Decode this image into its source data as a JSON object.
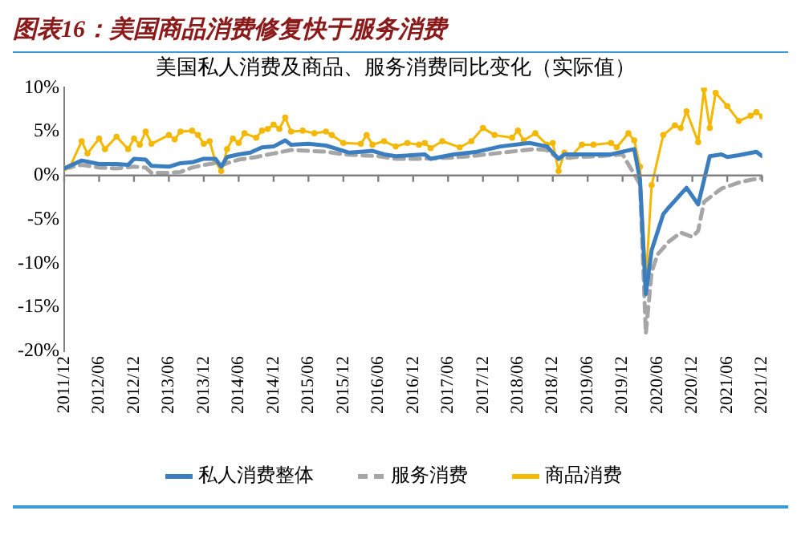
{
  "chart_data": {
    "type": "line",
    "title": "图表16：美国商品消费修复快于服务消费",
    "subtitle": "美国私人消费及商品、服务消费同比变化（实际值）",
    "legend": "bottom",
    "grid": false,
    "xlim": [
      "2011-12",
      "2021-12"
    ],
    "xticks": [
      {
        "value": "2011-12",
        "label": "2011/12"
      },
      {
        "value": "2012-06",
        "label": "2012/06"
      },
      {
        "value": "2012-12",
        "label": "2012/12"
      },
      {
        "value": "2013-06",
        "label": "2013/06"
      },
      {
        "value": "2013-12",
        "label": "2013/12"
      },
      {
        "value": "2014-06",
        "label": "2014/06"
      },
      {
        "value": "2014-12",
        "label": "2014/12"
      },
      {
        "value": "2015-06",
        "label": "2015/06"
      },
      {
        "value": "2015-12",
        "label": "2015/12"
      },
      {
        "value": "2016-06",
        "label": "2016/06"
      },
      {
        "value": "2016-12",
        "label": "2016/12"
      },
      {
        "value": "2017-06",
        "label": "2017/06"
      },
      {
        "value": "2017-12",
        "label": "2017/12"
      },
      {
        "value": "2018-06",
        "label": "2018/06"
      },
      {
        "value": "2018-12",
        "label": "2018/12"
      },
      {
        "value": "2019-06",
        "label": "2019/06"
      },
      {
        "value": "2019-12",
        "label": "2019/12"
      },
      {
        "value": "2020-06",
        "label": "2020/06"
      },
      {
        "value": "2020-12",
        "label": "2020/12"
      },
      {
        "value": "2021-06",
        "label": "2021/06"
      },
      {
        "value": "2021-12",
        "label": "2021/12"
      }
    ],
    "ylim": [
      -20,
      10
    ],
    "ref_lines": [
      {
        "axis": "y",
        "value": 0,
        "color": "#808080"
      }
    ],
    "yticks": [
      {
        "value": -20,
        "label": "-20%"
      },
      {
        "value": -15,
        "label": "-15%"
      },
      {
        "value": -10,
        "label": "-10%"
      },
      {
        "value": -5,
        "label": "-5%"
      },
      {
        "value": 0,
        "label": "0%"
      },
      {
        "value": 5,
        "label": "5%"
      },
      {
        "value": 10,
        "label": "10%"
      }
    ],
    "series": [
      {
        "name": "私人消费整体",
        "color": "#3a7ebf",
        "x": [
          "2011-12",
          "2012-03",
          "2012-06",
          "2012-09",
          "2012-11",
          "2012-12",
          "2013-02",
          "2013-03",
          "2013-06",
          "2013-08",
          "2013-10",
          "2013-12",
          "2014-02",
          "2014-03",
          "2014-04",
          "2014-06",
          "2014-08",
          "2014-10",
          "2014-12",
          "2015-02",
          "2015-03",
          "2015-06",
          "2015-09",
          "2015-11",
          "2016-01",
          "2016-03",
          "2016-05",
          "2016-07",
          "2016-09",
          "2017-02",
          "2017-03",
          "2017-07",
          "2017-11",
          "2018-03",
          "2018-08",
          "2018-11",
          "2019-01",
          "2019-02",
          "2019-05",
          "2019-10",
          "2019-12",
          "2020-02",
          "2020-03",
          "2020-04",
          "2020-05",
          "2020-07",
          "2020-08",
          "2020-11",
          "2021-01",
          "2021-03",
          "2021-05",
          "2021-06",
          "2021-08",
          "2021-11",
          "2021-12"
        ],
        "values": [
          0.8,
          1.7,
          1.3,
          1.3,
          1.2,
          1.9,
          1.8,
          1.1,
          1.0,
          1.4,
          1.5,
          1.9,
          1.9,
          1.0,
          2.1,
          2.4,
          2.6,
          3.2,
          3.3,
          4.0,
          3.5,
          3.6,
          3.4,
          3.0,
          2.6,
          2.7,
          2.8,
          2.4,
          2.2,
          2.4,
          1.9,
          2.4,
          2.7,
          3.3,
          3.7,
          3.3,
          1.9,
          2.4,
          2.4,
          2.4,
          2.7,
          3.0,
          -0.5,
          -13.5,
          -8.5,
          -4.4,
          -3.6,
          -1.4,
          -3.3,
          2.2,
          2.4,
          2.1,
          2.3,
          2.7,
          2.2
        ]
      },
      {
        "name": "服务消费",
        "color": "#a6a6a6",
        "line_style": "dashed",
        "x": [
          "2011-12",
          "2012-03",
          "2012-06",
          "2012-09",
          "2012-12",
          "2013-02",
          "2013-03",
          "2013-06",
          "2013-08",
          "2013-10",
          "2013-12",
          "2014-02",
          "2014-03",
          "2014-04",
          "2014-06",
          "2014-09",
          "2014-12",
          "2015-03",
          "2015-06",
          "2015-09",
          "2015-12",
          "2016-03",
          "2016-06",
          "2016-09",
          "2017-02",
          "2017-06",
          "2017-10",
          "2018-02",
          "2018-06",
          "2018-09",
          "2018-11",
          "2019-01",
          "2019-04",
          "2019-08",
          "2019-12",
          "2020-03",
          "2020-04",
          "2020-05",
          "2020-06",
          "2020-08",
          "2020-10",
          "2020-12",
          "2021-01",
          "2021-02",
          "2021-05",
          "2021-08",
          "2021-10",
          "2021-12"
        ],
        "values": [
          0.8,
          1.2,
          0.9,
          0.8,
          1.0,
          0.9,
          0.3,
          0.3,
          0.4,
          0.9,
          1.2,
          1.4,
          1.1,
          1.4,
          1.8,
          2.1,
          2.5,
          2.9,
          2.8,
          2.7,
          2.4,
          2.3,
          2.2,
          1.9,
          1.9,
          2.0,
          2.2,
          2.5,
          2.8,
          3.0,
          2.9,
          1.9,
          2.1,
          2.2,
          2.4,
          -1.0,
          -18.0,
          -11.0,
          -9.0,
          -7.5,
          -6.5,
          -7.0,
          -6.3,
          -3.0,
          -1.5,
          -0.8,
          -0.5,
          -0.3
        ]
      },
      {
        "name": "商品消费",
        "color": "#f5b800",
        "marker": "circle",
        "x": [
          "2011-12",
          "2012-01",
          "2012-03",
          "2012-04",
          "2012-06",
          "2012-07",
          "2012-09",
          "2012-11",
          "2012-12",
          "2013-01",
          "2013-02",
          "2013-03",
          "2013-06",
          "2013-07",
          "2013-08",
          "2013-10",
          "2013-11",
          "2013-12",
          "2014-01",
          "2014-02",
          "2014-03",
          "2014-04",
          "2014-05",
          "2014-06",
          "2014-07",
          "2014-09",
          "2014-10",
          "2014-11",
          "2014-12",
          "2015-01",
          "2015-02",
          "2015-03",
          "2015-05",
          "2015-07",
          "2015-09",
          "2015-10",
          "2015-12",
          "2016-03",
          "2016-04",
          "2016-05",
          "2016-07",
          "2016-09",
          "2016-11",
          "2017-01",
          "2017-02",
          "2017-03",
          "2017-05",
          "2017-08",
          "2017-10",
          "2017-12",
          "2018-02",
          "2018-05",
          "2018-06",
          "2018-07",
          "2018-09",
          "2018-11",
          "2018-12",
          "2019-01",
          "2019-02",
          "2019-03",
          "2019-05",
          "2019-07",
          "2019-10",
          "2019-11",
          "2020-01",
          "2020-02",
          "2020-03",
          "2020-04",
          "2020-05",
          "2020-07",
          "2020-09",
          "2020-10",
          "2020-11",
          "2021-01",
          "2021-02",
          "2021-03",
          "2021-04",
          "2021-06",
          "2021-08",
          "2021-10",
          "2021-11",
          "2021-12"
        ],
        "values": [
          0.8,
          1.0,
          3.9,
          2.5,
          4.2,
          3.0,
          4.4,
          3.0,
          4.2,
          3.5,
          5.0,
          3.6,
          4.6,
          4.1,
          5.0,
          5.1,
          4.6,
          3.6,
          3.9,
          1.6,
          0.5,
          3.0,
          4.2,
          3.7,
          4.8,
          4.3,
          5.1,
          5.3,
          5.8,
          5.3,
          6.6,
          5.0,
          5.1,
          4.8,
          5.0,
          4.6,
          3.7,
          3.6,
          4.6,
          3.5,
          3.9,
          3.3,
          3.7,
          3.5,
          3.7,
          3.1,
          3.9,
          3.2,
          3.9,
          5.4,
          4.6,
          4.3,
          5.1,
          4.0,
          4.8,
          3.5,
          3.7,
          0.5,
          2.6,
          2.1,
          3.5,
          3.5,
          3.7,
          3.2,
          4.8,
          4.0,
          1.0,
          -12.1,
          -1.1,
          4.6,
          5.7,
          5.4,
          7.3,
          3.8,
          9.8,
          5.4,
          9.4,
          7.9,
          6.2,
          6.8,
          7.2,
          6.7
        ]
      }
    ]
  }
}
